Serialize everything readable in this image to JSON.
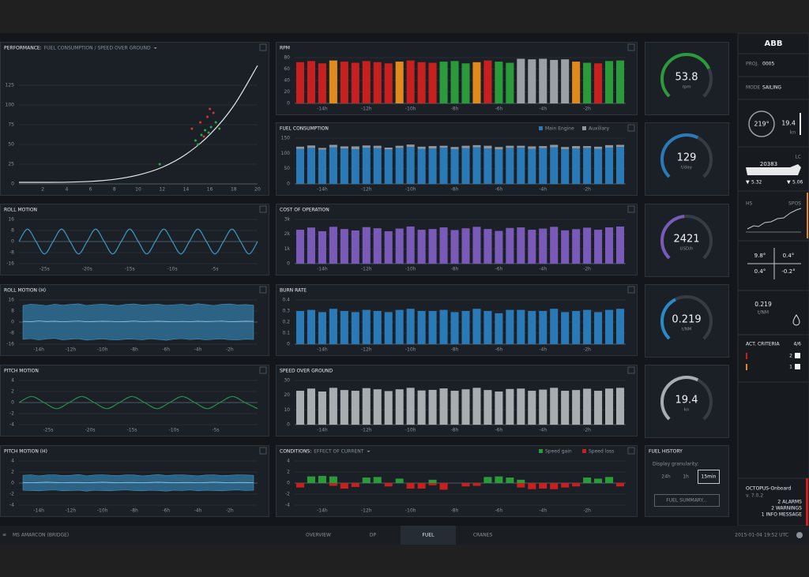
{
  "chart_data": [
    {
      "type": "scatter",
      "title": "PERFORMANCE:",
      "subtitle": "FUEL CONSUMPTION / SPEED OVER GROUND",
      "xlim": [
        0,
        20
      ],
      "xticks": [
        2,
        4,
        6,
        8,
        10,
        12,
        14,
        16,
        18,
        20
      ],
      "ylim": [
        0,
        160
      ],
      "yticks": [
        0,
        25,
        50,
        75,
        100,
        125
      ],
      "curve": {
        "color": "#e6e8ea",
        "x": [
          0,
          2,
          4,
          6,
          8,
          10,
          12,
          14,
          16,
          18,
          20
        ],
        "values": [
          2,
          2,
          2.2,
          3.2,
          5.8,
          11.3,
          21,
          37.5,
          62.6,
          99,
          150
        ]
      },
      "series": [
        {
          "color": "#2ea84a",
          "x": [
            11.8,
            14.8,
            15.3,
            15.6,
            16.1,
            16.5,
            15.0,
            16.8,
            15.9
          ],
          "values": [
            25,
            55,
            62,
            68,
            72,
            78,
            50,
            70,
            65
          ]
        },
        {
          "color": "#d8342a",
          "x": [
            14.5,
            15.2,
            15.8,
            16.3,
            15.5,
            16.0
          ],
          "values": [
            70,
            78,
            85,
            90,
            60,
            95
          ]
        }
      ]
    },
    {
      "type": "bar",
      "title": "RPM",
      "ylim": [
        0,
        80
      ],
      "yticks": [
        0,
        20,
        40,
        60,
        80
      ],
      "categories": [
        null,
        null,
        "-14h",
        null,
        null,
        null,
        "-12h",
        null,
        null,
        null,
        "-10h",
        null,
        null,
        null,
        "-8h",
        null,
        null,
        null,
        "-6h",
        null,
        null,
        null,
        "-4h",
        null,
        null,
        null,
        "-2h",
        null,
        null,
        null
      ],
      "values": [
        72,
        74,
        70,
        75,
        73,
        71,
        74,
        72,
        70,
        73,
        75,
        72,
        71,
        73,
        74,
        70,
        72,
        75,
        73,
        71,
        78,
        77,
        78,
        76,
        77,
        73,
        71,
        70,
        74,
        75
      ],
      "colors": [
        "#c8201e",
        "#c8201e",
        "#c8201e",
        "#e08a1e",
        "#c8201e",
        "#c8201e",
        "#c8201e",
        "#c8201e",
        "#c8201e",
        "#e08a1e",
        "#c8201e",
        "#c8201e",
        "#c8201e",
        "#2a9a3a",
        "#2a9a3a",
        "#2a9a3a",
        "#e08a1e",
        "#c8201e",
        "#2a9a3a",
        "#2a9a3a",
        "#9aa0a6",
        "#9aa0a6",
        "#9aa0a6",
        "#9aa0a6",
        "#9aa0a6",
        "#e08a1e",
        "#2a9a3a",
        "#c8201e",
        "#2a9a3a",
        "#2a9a3a"
      ]
    },
    {
      "type": "bar",
      "title": "FUEL CONSUMPTION",
      "ylim": [
        0,
        150
      ],
      "yticks": [
        0,
        50,
        100,
        150
      ],
      "categories": [
        null,
        null,
        "-14h",
        null,
        null,
        null,
        "-12h",
        null,
        null,
        null,
        "-10h",
        null,
        null,
        null,
        "-8h",
        null,
        null,
        null,
        "-6h",
        null,
        null,
        null,
        "-4h",
        null,
        null,
        null,
        "-2h",
        null,
        null,
        null
      ],
      "series": [
        {
          "name": "Main Engine",
          "color": "#2a7ab8",
          "values": [
            115,
            118,
            112,
            120,
            116,
            114,
            119,
            117,
            113,
            118,
            121,
            115,
            116,
            119,
            114,
            117,
            120,
            116,
            113,
            118,
            119,
            115,
            117,
            120,
            114,
            116,
            118,
            115,
            119,
            121
          ]
        },
        {
          "name": "Auxiliary",
          "color": "#8f969e",
          "values": [
            7,
            8,
            6,
            8,
            7,
            9,
            7,
            8,
            6,
            7,
            8,
            7,
            8,
            6,
            7,
            8,
            7,
            9,
            8,
            7,
            6,
            8,
            7,
            8,
            7,
            8,
            6,
            7,
            8,
            7
          ]
        }
      ]
    },
    {
      "type": "bar",
      "title": "COST OF OPERATION",
      "ylim": [
        0,
        3000
      ],
      "yticks": [
        0,
        {
          "value": 1000,
          "label": "1k"
        },
        {
          "value": 2000,
          "label": "2k"
        },
        {
          "value": 3000,
          "label": "3k"
        }
      ],
      "color": "#7a5ab8",
      "categories": [
        null,
        null,
        "-14h",
        null,
        null,
        null,
        "-12h",
        null,
        null,
        null,
        "-10h",
        null,
        null,
        null,
        "-8h",
        null,
        null,
        null,
        "-6h",
        null,
        null,
        null,
        "-4h",
        null,
        null,
        null,
        "-2h",
        null,
        null,
        null
      ],
      "values": [
        2300,
        2450,
        2200,
        2500,
        2350,
        2250,
        2480,
        2400,
        2200,
        2380,
        2520,
        2300,
        2350,
        2460,
        2280,
        2400,
        2500,
        2350,
        2220,
        2420,
        2460,
        2300,
        2380,
        2500,
        2260,
        2340,
        2440,
        2300,
        2460,
        2520
      ]
    },
    {
      "type": "bar",
      "title": "BURN RATE",
      "ylim": [
        0,
        0.4
      ],
      "yticks": [
        0,
        0.1,
        0.2,
        0.3,
        0.4
      ],
      "color": "#2a7ab8",
      "categories": [
        null,
        null,
        "-14h",
        null,
        null,
        null,
        "-12h",
        null,
        null,
        null,
        "-10h",
        null,
        null,
        null,
        "-8h",
        null,
        null,
        null,
        "-6h",
        null,
        null,
        null,
        "-4h",
        null,
        null,
        null,
        "-2h",
        null,
        null,
        null
      ],
      "values": [
        0.3,
        0.31,
        0.29,
        0.32,
        0.3,
        0.29,
        0.31,
        0.3,
        0.29,
        0.31,
        0.32,
        0.3,
        0.3,
        0.31,
        0.29,
        0.3,
        0.32,
        0.3,
        0.28,
        0.31,
        0.31,
        0.3,
        0.3,
        0.32,
        0.29,
        0.3,
        0.31,
        0.29,
        0.31,
        0.32
      ]
    },
    {
      "type": "bar",
      "title": "SPEED OVER GROUND",
      "ylim": [
        0,
        30
      ],
      "yticks": [
        0,
        10,
        20,
        30
      ],
      "color": "#a8adb2",
      "categories": [
        null,
        null,
        "-14h",
        null,
        null,
        null,
        "-12h",
        null,
        null,
        null,
        "-10h",
        null,
        null,
        null,
        "-8h",
        null,
        null,
        null,
        "-6h",
        null,
        null,
        null,
        "-4h",
        null,
        null,
        null,
        "-2h",
        null,
        null,
        null
      ],
      "values": [
        23,
        24.5,
        22.5,
        25,
        23.5,
        23,
        24.8,
        24,
        22.8,
        24,
        25,
        23.2,
        23.6,
        24.6,
        23,
        24,
        25,
        23.5,
        22.5,
        24.2,
        24.5,
        23,
        23.8,
        25,
        23,
        23.5,
        24.4,
        23,
        24.5,
        25
      ]
    },
    {
      "type": "bar",
      "title": "CONDITIONS:",
      "subtitle": "EFFECT OF CURRENT",
      "ylim": [
        -4,
        4
      ],
      "yticks": [
        4,
        2,
        0,
        -2,
        -4
      ],
      "categories": [
        null,
        null,
        "-14h",
        null,
        null,
        null,
        "-12h",
        null,
        null,
        null,
        "-10h",
        null,
        null,
        null,
        "-8h",
        null,
        null,
        null,
        "-6h",
        null,
        null,
        null,
        "-4h",
        null,
        null,
        null,
        "-2h",
        null,
        null,
        null
      ],
      "series": [
        {
          "name": "Speed gain",
          "color": "#2a9a3a",
          "values": [
            0,
            1.2,
            1.3,
            1.2,
            0,
            0,
            1.0,
            1.1,
            0,
            0.8,
            0,
            0,
            0.6,
            0,
            0,
            0,
            0,
            1.1,
            1.2,
            1.0,
            0.6,
            0,
            0,
            0,
            0,
            0,
            1.0,
            0.8,
            1.1,
            0
          ]
        },
        {
          "name": "Speed loss",
          "color": "#c8201e",
          "values": [
            -0.8,
            0,
            0,
            -0.5,
            -1.0,
            -0.7,
            0,
            0,
            -0.6,
            0,
            -1.0,
            -1.0,
            -0.4,
            -1.2,
            0,
            -0.6,
            -0.5,
            0,
            0,
            0,
            -0.8,
            -1.1,
            -1.0,
            -1.1,
            -0.8,
            -0.6,
            0,
            0,
            0,
            -0.6
          ]
        }
      ]
    },
    {
      "type": "line",
      "title": "ROLL MOTION",
      "color": "#3f94bd",
      "xlim": [
        -28,
        0
      ],
      "xticks": [
        {
          "value": -25,
          "label": "-25s"
        },
        {
          "value": -20,
          "label": "-20s"
        },
        {
          "value": -15,
          "label": "-15s"
        },
        {
          "value": -10,
          "label": "-10s"
        },
        {
          "value": -5,
          "label": "-5s"
        }
      ],
      "ylim": [
        -16,
        16
      ],
      "yticks": [
        16,
        8,
        0,
        -8,
        -16
      ],
      "x": [
        -28,
        -27,
        -26,
        -25,
        -24,
        -23,
        -22,
        -21,
        -20,
        -19,
        -18,
        -17,
        -16,
        -15,
        -14,
        -13,
        -12,
        -11,
        -10,
        -9,
        -8,
        -7,
        -6,
        -5,
        -4,
        -3,
        -2,
        -1,
        0
      ],
      "values": [
        0,
        9,
        0,
        -9,
        0,
        9,
        0,
        -9,
        0,
        9,
        0,
        -9,
        0,
        9,
        0,
        -9,
        0,
        9,
        0,
        -9,
        0,
        9,
        0,
        -9,
        0,
        9,
        0,
        -9,
        0
      ]
    },
    {
      "type": "area",
      "title": "ROLL MOTION (H)",
      "color": "#2f6f95",
      "ylim": [
        -16,
        16
      ],
      "yticks": [
        16,
        8,
        0,
        -8,
        -16
      ],
      "categories": [
        null,
        null,
        "-14h",
        null,
        null,
        null,
        "-12h",
        null,
        null,
        null,
        "-10h",
        null,
        null,
        null,
        "-8h",
        null,
        null,
        null,
        "-6h",
        null,
        null,
        null,
        "-4h",
        null,
        null,
        null,
        "-2h",
        null,
        null,
        null
      ],
      "upper": [
        12,
        13,
        12.5,
        11.8,
        13,
        12.2,
        12.8,
        13.2,
        12,
        12.6,
        13,
        12.4,
        11.9,
        12.8,
        13.1,
        12.3,
        12.7,
        13,
        12.1,
        12.5,
        12.9,
        12.2,
        13.3,
        12.6,
        12,
        12.8,
        13.1,
        12.4,
        12.7,
        12.2
      ],
      "lower": [
        -12.5,
        -12,
        -13,
        -12.2,
        -11.8,
        -12.9,
        -12.4,
        -12.1,
        -13.1,
        -12.6,
        -12.2,
        -12.8,
        -13,
        -12.3,
        -12.5,
        -12.9,
        -12.1,
        -12.6,
        -13.2,
        -12.4,
        -12,
        -12.7,
        -12.3,
        -12.9,
        -12.5,
        -12.2,
        -12.8,
        -13,
        -12.4,
        -12.6
      ],
      "values": [
        0.5,
        0.3,
        0.8,
        0.4,
        0.6,
        0.2,
        0.5,
        0.7,
        0.3,
        0.4,
        0.6,
        0.5,
        0.2,
        0.4,
        0.7,
        0.3,
        0.5,
        0.6,
        0.4,
        0.2,
        0.5,
        0.3,
        0.6,
        0.4,
        0.5,
        0.7,
        0.3,
        0.4,
        0.6,
        0.5
      ]
    },
    {
      "type": "line",
      "title": "PITCH MOTION",
      "color": "#2f8a4a",
      "xlim": [
        -28.5,
        0
      ],
      "xticks": [
        {
          "value": -25,
          "label": "-25s"
        },
        {
          "value": -20,
          "label": "-20s"
        },
        {
          "value": -15,
          "label": "-15s"
        },
        {
          "value": -10,
          "label": "-10s"
        },
        {
          "value": -5,
          "label": "-5s"
        }
      ],
      "ylim": [
        -4,
        4
      ],
      "yticks": [
        4,
        2,
        0,
        -2,
        -4
      ],
      "x": [
        -28.5,
        -27,
        -25.5,
        -24,
        -22.5,
        -21,
        -19.5,
        -18,
        -16.5,
        -15,
        -13.5,
        -12,
        -10.5,
        -9,
        -7.5,
        -6,
        -4.5,
        -3,
        -1.5,
        0
      ],
      "values": [
        0,
        1.1,
        0,
        -1.1,
        0,
        1.1,
        0,
        -1.1,
        0,
        1.1,
        0,
        -1.1,
        0,
        1.1,
        0,
        -1.1,
        0,
        1.1,
        0,
        -1.1
      ]
    },
    {
      "type": "area",
      "title": "PITCH MOTION (H)",
      "color": "#2f6f95",
      "ylim": [
        -4,
        4
      ],
      "yticks": [
        4,
        2,
        0,
        -2,
        -4
      ],
      "categories": [
        null,
        null,
        "-14h",
        null,
        null,
        null,
        "-12h",
        null,
        null,
        null,
        "-10h",
        null,
        null,
        null,
        "-8h",
        null,
        null,
        null,
        "-6h",
        null,
        null,
        null,
        "-4h",
        null,
        null,
        null,
        "-2h",
        null,
        null,
        null
      ],
      "upper": [
        1.4,
        1.5,
        1.3,
        1.45,
        1.5,
        1.35,
        1.4,
        1.55,
        1.3,
        1.45,
        1.5,
        1.4,
        1.35,
        1.5,
        1.45,
        1.3,
        1.4,
        1.55,
        1.35,
        1.45,
        1.5,
        1.4,
        1.3,
        1.45,
        1.5,
        1.35,
        1.4,
        1.5,
        1.45,
        1.4
      ],
      "lower": [
        -1.3,
        -1.35,
        -1.4,
        -1.3,
        -1.25,
        -1.4,
        -1.35,
        -1.3,
        -1.45,
        -1.3,
        -1.35,
        -1.4,
        -1.3,
        -1.25,
        -1.35,
        -1.4,
        -1.3,
        -1.35,
        -1.45,
        -1.3,
        -1.35,
        -1.25,
        -1.4,
        -1.3,
        -1.35,
        -1.4,
        -1.3,
        -1.25,
        -1.35,
        -1.3
      ],
      "values": [
        0.1,
        0.05,
        0.1,
        0.15,
        0.1,
        0.05,
        0.1,
        0.1,
        0.05,
        0.1,
        0.15,
        0.1,
        0.05,
        0.1,
        0.1,
        0.05,
        0.1,
        0.15,
        0.1,
        0.05,
        0.1,
        0.1,
        0.05,
        0.1,
        0.15,
        0.1,
        0.05,
        0.1,
        0.1,
        0.05
      ]
    }
  ],
  "gauges": [
    {
      "value": 53.8,
      "unit": "rpm",
      "color": "#2a9a3a"
    },
    {
      "value": 129,
      "unit": "t/day",
      "color": "#2a7ab8"
    },
    {
      "value": 2421,
      "unit": "USD/h",
      "color": "#7a5ab8"
    },
    {
      "value": 0.219,
      "unit": "t/NM",
      "color": "#2a8ac8"
    },
    {
      "value": 19.4,
      "unit": "kn",
      "color": "#a8adb2"
    }
  ],
  "fuel_history": {
    "title": "FUEL HISTORY",
    "granularity_label": "Display granularity:",
    "options": [
      "24h",
      "1h",
      "15min"
    ],
    "summary_button": "FUEL SUMMARY..."
  },
  "sidebar": {
    "logo": "ABB",
    "project_label": "PROJ.",
    "project": "0005",
    "mode_label": "MODE",
    "mode": "SAILING",
    "heading": "219°",
    "speed": "19.4",
    "speed_unit": "kn",
    "draft_label": "LC",
    "displacement": "20383",
    "draft_fore": "5.32",
    "draft_aft": "5.06",
    "hs_label": "HS",
    "spos_label": "SPOS",
    "trim": [
      "9.8°",
      "0.4°",
      "0.4°",
      "-0.2°"
    ],
    "burn_rate": "0.219",
    "burn_rate_unit": "t/NM",
    "criteria_label": "ACT. CRITERIA",
    "criteria": "4/6",
    "criteria_counts": [
      "2",
      "1"
    ],
    "app": "OCTOPUS-Onboard",
    "version": "v. 7.0.2",
    "alerts": [
      "2 ALARMS",
      "2 WARNINGS",
      "1 INFO MESSAGE"
    ]
  },
  "nav": {
    "vessel": "MS AMARCON (BRIDGE)",
    "tabs": [
      "OVERVIEW",
      "DP",
      "FUEL",
      "CRANES"
    ],
    "timestamp": "2015-01-04 19:52 UTC"
  }
}
